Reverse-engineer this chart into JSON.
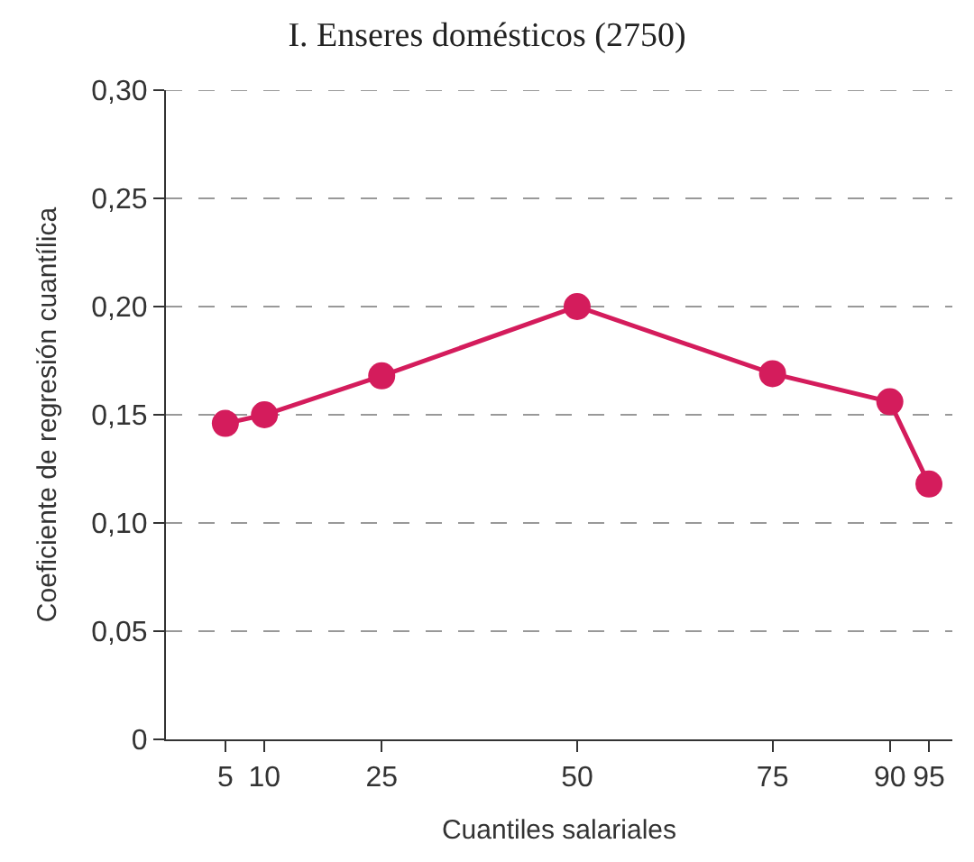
{
  "chart_data": {
    "type": "line",
    "title": "I. Enseres domésticos (2750)",
    "xlabel": "Cuantiles salariales",
    "ylabel": "Coeficiente de regresión cuantílica",
    "x": [
      5,
      10,
      25,
      50,
      75,
      90,
      95
    ],
    "series": [
      {
        "color": "#d41c5c",
        "values": [
          0.146,
          0.15,
          0.168,
          0.2,
          0.169,
          0.156,
          0.118
        ]
      }
    ],
    "xlim": [
      -2.6,
      98
    ],
    "xticks": [
      5,
      10,
      25,
      50,
      75,
      90,
      95
    ],
    "ylim": [
      0,
      0.3
    ],
    "yticks": [
      {
        "value": 0,
        "label": "0"
      },
      {
        "value": 0.05,
        "label": "0,05"
      },
      {
        "value": 0.1,
        "label": "0,10"
      },
      {
        "value": 0.15,
        "label": "0,15"
      },
      {
        "value": 0.2,
        "label": "0,20"
      },
      {
        "value": 0.25,
        "label": "0,25"
      },
      {
        "value": 0.3,
        "label": "0,30"
      }
    ],
    "grid": "y",
    "marker": "circle",
    "line_style": "solid"
  }
}
